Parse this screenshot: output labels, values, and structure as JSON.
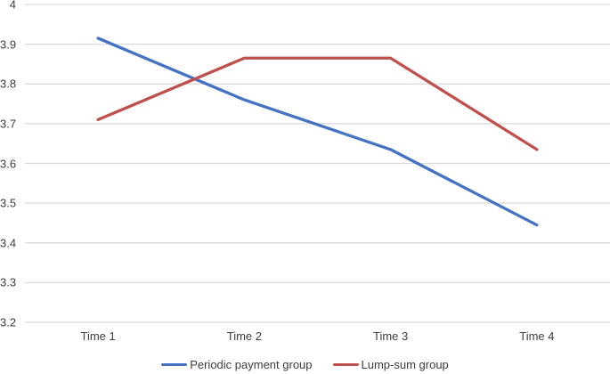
{
  "chart_data": {
    "type": "line",
    "title": "",
    "xlabel": "",
    "ylabel": "",
    "categories": [
      "Time 1",
      "Time 2",
      "Time 3",
      "Time 4"
    ],
    "series": [
      {
        "name": "Periodic payment group",
        "color": "#4472C4",
        "values": [
          3.915,
          3.76,
          3.635,
          3.445
        ]
      },
      {
        "name": "Lump-sum group",
        "color": "#C0504D",
        "values": [
          3.71,
          3.865,
          3.865,
          3.635
        ]
      }
    ],
    "ylim": [
      3.2,
      4.0
    ],
    "ytick_step": 0.1,
    "ytick_labels": [
      "4",
      "3.9",
      "3.8",
      "3.7",
      "3.6",
      "3.5",
      "3.4",
      "3.3",
      "3.2"
    ],
    "grid": "horizontal",
    "gridline_color": "#d9d9d9",
    "legend_position": "bottom",
    "line_width": 3.3
  }
}
